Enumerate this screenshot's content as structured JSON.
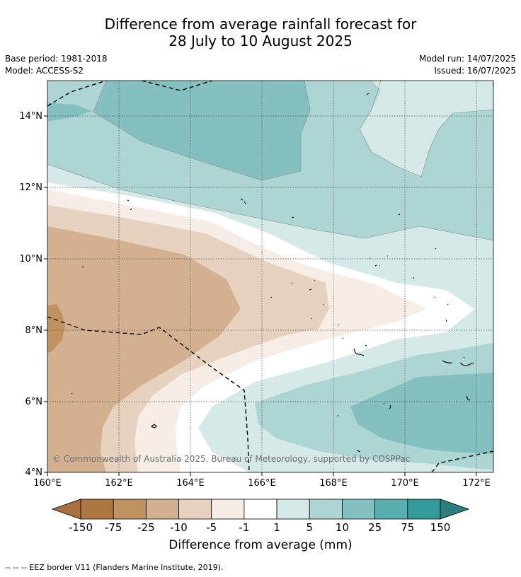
{
  "title": {
    "line1": "Difference from average rainfall forecast for",
    "line2": "28 July to 10 August 2025"
  },
  "meta": {
    "base_period": "Base period: 1981-2018",
    "model": "Model: ACCESS-S2",
    "model_run": "Model run: 14/07/2025",
    "issued": "Issued: 16/07/2025"
  },
  "map": {
    "lon_range": [
      160,
      172.5
    ],
    "lat_range": [
      4,
      15
    ],
    "lon_ticks": [
      "160°E",
      "162°E",
      "164°E",
      "166°E",
      "168°E",
      "170°E",
      "172°E"
    ],
    "lat_ticks": [
      "14°N",
      "12°N",
      "10°N",
      "8°N",
      "6°N",
      "4°N"
    ],
    "gridlines": true,
    "copyright": "© Commonwealth of Australia 2025, Bureau of Meteorology, supported by COSPPac"
  },
  "colorbar": {
    "ticks": [
      "-150",
      "-75",
      "-25",
      "-10",
      "-5",
      "-1",
      "1",
      "5",
      "10",
      "25",
      "75",
      "150"
    ],
    "colors": [
      "#a9723d",
      "#ae7843",
      "#c0925f",
      "#d3b190",
      "#e6d2bf",
      "#f5ede6",
      "#ffffff",
      "#d5e9e8",
      "#acd5d4",
      "#84c0c0",
      "#5aaeaf",
      "#349b9a",
      "#2a7f7e"
    ],
    "label": "Difference from average (mm)"
  },
  "footnote": "--  --  -- EEZ border V11 (Flanders Marine Institute, 2019)."
}
